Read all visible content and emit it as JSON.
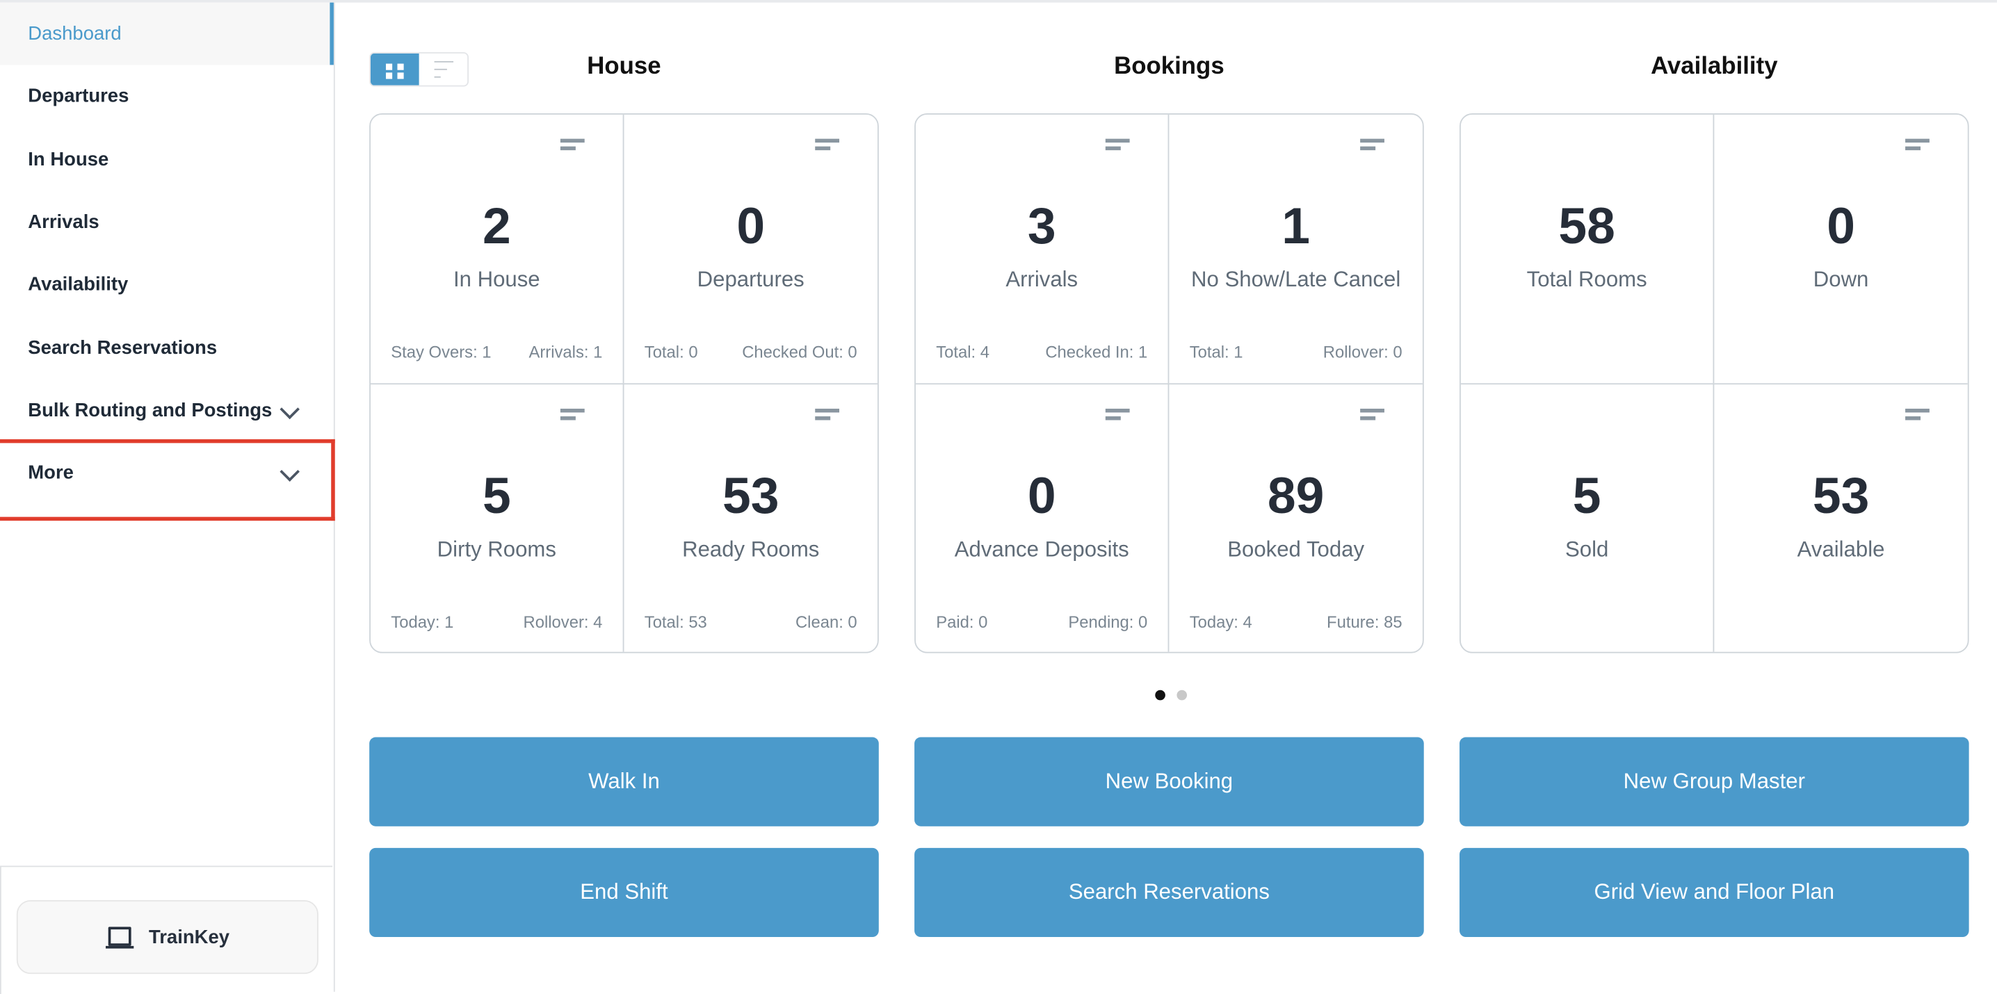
{
  "sidebar": {
    "items": [
      {
        "label": "Dashboard",
        "active": true
      },
      {
        "label": "Departures"
      },
      {
        "label": "In House"
      },
      {
        "label": "Arrivals"
      },
      {
        "label": "Availability"
      },
      {
        "label": "Search Reservations"
      },
      {
        "label": "Bulk Routing and Postings",
        "expandable": true
      },
      {
        "label": "More",
        "expandable": true,
        "highlighted": true
      }
    ],
    "trainkey_label": "TrainKey",
    "trainkey_icon": "laptop-icon"
  },
  "view_toggle": {
    "options": [
      "grid-view",
      "list-view"
    ],
    "selected": "grid-view"
  },
  "colors": {
    "accent": "#4a9acb",
    "button": "#4b9acb",
    "highlight": "#e13d2c"
  },
  "groups": [
    {
      "title": "House",
      "cells": [
        {
          "value": "2",
          "label": "In House",
          "menu": true,
          "footer": [
            "Stay Overs: 1",
            "Arrivals: 1"
          ]
        },
        {
          "value": "0",
          "label": "Departures",
          "menu": true,
          "footer": [
            "Total: 0",
            "Checked Out: 0"
          ]
        },
        {
          "value": "5",
          "label": "Dirty Rooms",
          "menu": true,
          "footer": [
            "Today: 1",
            "Rollover: 4"
          ]
        },
        {
          "value": "53",
          "label": "Ready Rooms",
          "menu": true,
          "footer": [
            "Total: 53",
            "Clean: 0"
          ]
        }
      ]
    },
    {
      "title": "Bookings",
      "cells": [
        {
          "value": "3",
          "label": "Arrivals",
          "menu": true,
          "footer": [
            "Total: 4",
            "Checked In: 1"
          ]
        },
        {
          "value": "1",
          "label": "No Show/Late Cancel",
          "menu": true,
          "footer": [
            "Total: 1",
            "Rollover: 0"
          ]
        },
        {
          "value": "0",
          "label": "Advance Deposits",
          "menu": true,
          "footer": [
            "Paid: 0",
            "Pending: 0"
          ]
        },
        {
          "value": "89",
          "label": "Booked Today",
          "menu": true,
          "footer": [
            "Today: 4",
            "Future: 85"
          ]
        }
      ]
    },
    {
      "title": "Availability",
      "cells": [
        {
          "value": "58",
          "label": "Total Rooms",
          "menu": false
        },
        {
          "value": "0",
          "label": "Down",
          "menu": true
        },
        {
          "value": "5",
          "label": "Sold",
          "menu": false
        },
        {
          "value": "53",
          "label": "Available",
          "menu": true
        }
      ]
    }
  ],
  "pagination": {
    "pages": 2,
    "current": 1
  },
  "actions": [
    [
      "Walk In",
      "New Booking",
      "New Group Master"
    ],
    [
      "End Shift",
      "Search Reservations",
      "Grid View and Floor Plan"
    ]
  ]
}
